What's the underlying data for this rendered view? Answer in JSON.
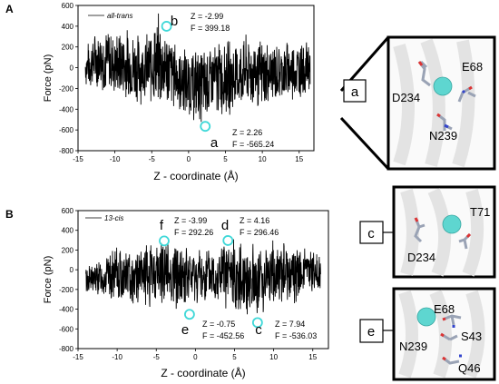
{
  "figure": {
    "panels": [
      {
        "letter": "A",
        "legend": "all-trans",
        "ylabel": "Force (pN)",
        "xlabel": "Z - coordinate (Å)",
        "markers": [
          {
            "label": "b",
            "z_text": "Z = -2.99",
            "f_text": "F = 399.18",
            "z": -2.99,
            "f": 399.18
          },
          {
            "label": "a",
            "z_text": "Z = 2.26",
            "f_text": "F = -565.24",
            "z": 2.26,
            "f": -565.24
          }
        ]
      },
      {
        "letter": "B",
        "legend": "13-cis",
        "ylabel": "Force (pN)",
        "xlabel": "Z - coordinate (Å)",
        "markers": [
          {
            "label": "f",
            "z_text": "Z = -3.99",
            "f_text": "F = 292.26",
            "z": -3.99,
            "f": 292.26
          },
          {
            "label": "d",
            "z_text": "Z = 4.16",
            "f_text": "F = 296.46",
            "z": 4.16,
            "f": 296.46
          },
          {
            "label": "e",
            "z_text": "Z = -0.75",
            "f_text": "F = -452.56",
            "z": -0.75,
            "f": -452.56
          },
          {
            "label": "c",
            "z_text": "Z = 7.94",
            "f_text": "F = -536.03",
            "z": 7.94,
            "f": -536.03
          }
        ]
      }
    ],
    "insets": [
      {
        "label": "a",
        "residues": [
          "E68",
          "D234",
          "N239"
        ]
      },
      {
        "label": "c",
        "residues": [
          "T71",
          "D234"
        ]
      },
      {
        "label": "e",
        "residues": [
          "E68",
          "N239",
          "S43",
          "Q46"
        ]
      }
    ]
  },
  "chart_data": [
    {
      "type": "line",
      "legend": [
        "all-trans"
      ],
      "xlabel": "Z - coordinate (Å)",
      "ylabel": "Force (pN)",
      "xlim": [
        -15,
        17
      ],
      "ylim": [
        -800,
        600
      ],
      "xticks": [
        "-15",
        "-10",
        "-5",
        "0",
        "5",
        "10",
        "15"
      ],
      "yticks": [
        "-800",
        "-600",
        "-400",
        "-200",
        "0",
        "200",
        "400",
        "600"
      ],
      "envelope": {
        "x": [
          -14,
          -12,
          -10,
          -8,
          -6,
          -4,
          -2,
          0,
          2,
          4,
          6,
          8,
          10,
          12,
          14,
          16.5
        ],
        "upper": [
          220,
          440,
          380,
          420,
          320,
          560,
          300,
          200,
          230,
          300,
          300,
          340,
          300,
          260,
          300,
          280
        ],
        "lower": [
          -200,
          -250,
          -300,
          -400,
          -350,
          -450,
          -420,
          -520,
          -570,
          -500,
          -480,
          -400,
          -450,
          -350,
          -380,
          -250
        ]
      },
      "series": [
        {
          "name": "all-trans"
        }
      ]
    },
    {
      "type": "line",
      "legend": [
        "13-cis"
      ],
      "xlabel": "Z - coordinate (Å)",
      "ylabel": "Force (pN)",
      "xlim": [
        -15,
        17
      ],
      "ylim": [
        -800,
        600
      ],
      "xticks": [
        "-15",
        "-10",
        "-5",
        "0",
        "5",
        "10",
        "15"
      ],
      "yticks": [
        "-800",
        "-600",
        "-400",
        "-200",
        "0",
        "200",
        "400",
        "600"
      ],
      "envelope": {
        "x": [
          -14,
          -12,
          -10,
          -8,
          -6,
          -4,
          -2,
          0,
          2,
          4,
          6,
          8,
          10,
          12,
          14,
          16
        ],
        "upper": [
          60,
          130,
          240,
          250,
          280,
          360,
          290,
          250,
          260,
          340,
          300,
          300,
          330,
          300,
          250,
          200
        ],
        "lower": [
          -260,
          -300,
          -350,
          -380,
          -400,
          -380,
          -440,
          -380,
          -400,
          -430,
          -470,
          -530,
          -420,
          -400,
          -300,
          -250
        ]
      },
      "series": [
        {
          "name": "13-cis"
        }
      ]
    }
  ]
}
